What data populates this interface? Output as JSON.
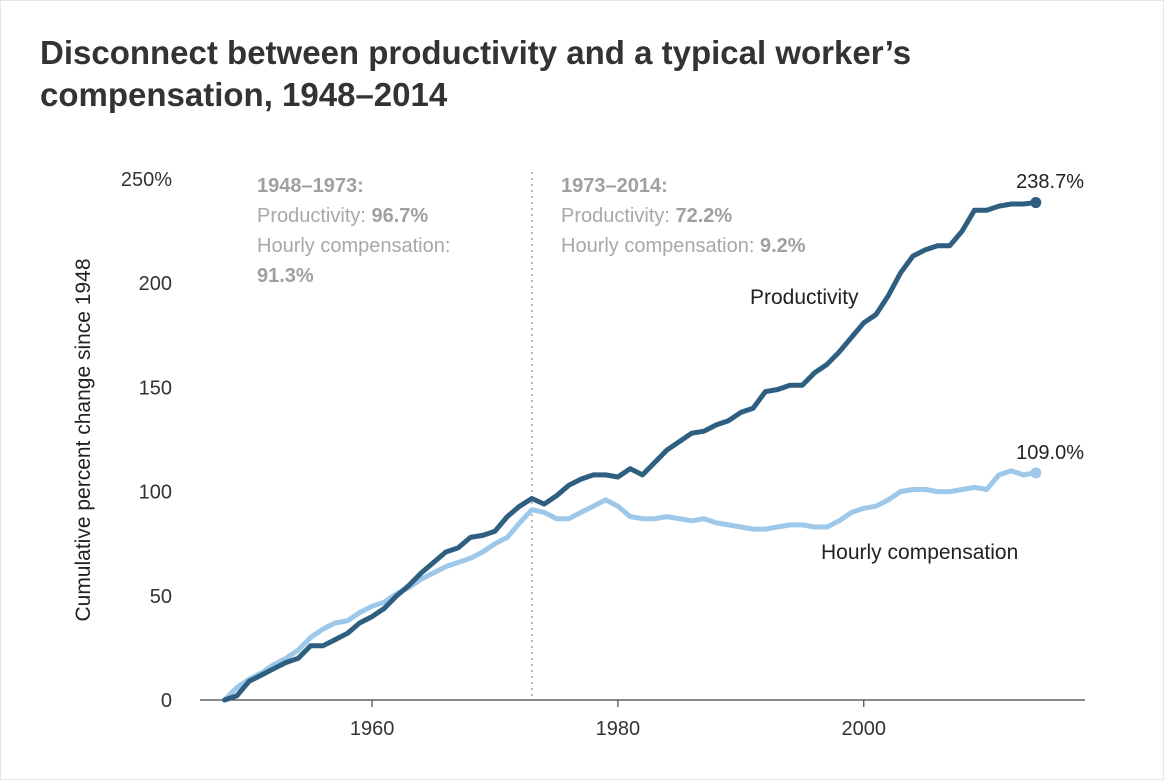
{
  "chart_data": {
    "type": "line",
    "title": "Disconnect between productivity and a typical worker’s compensation, 1948–2014",
    "ylabel": "Cumulative percent change since 1948",
    "xlabel": "",
    "xlim": [
      1946,
      2018
    ],
    "ylim": [
      0,
      250
    ],
    "x_ticks": [
      "1960",
      "1980",
      "2000"
    ],
    "y_ticks": [
      "0",
      "50",
      "100",
      "150",
      "200",
      "250%"
    ],
    "grid": false,
    "reference_line": {
      "x": 1973,
      "style": "dotted"
    },
    "annotations": {
      "period1": {
        "heading": "1948–1973:",
        "prod_label": "Productivity: ",
        "prod_value": "96.7%",
        "comp_label": "Hourly compensation:",
        "comp_value": "91.3%"
      },
      "period2": {
        "heading": "1973–2014:",
        "prod_label": "Productivity: ",
        "prod_value": "72.2%",
        "comp_label": "Hourly compensation: ",
        "comp_value": "9.2%"
      }
    },
    "series": [
      {
        "name": "Productivity",
        "color": "#2e5f80",
        "end_label": "238.7%",
        "x": [
          1948,
          1949,
          1950,
          1951,
          1952,
          1953,
          1954,
          1955,
          1956,
          1957,
          1958,
          1959,
          1960,
          1961,
          1962,
          1963,
          1964,
          1965,
          1966,
          1967,
          1968,
          1969,
          1970,
          1971,
          1972,
          1973,
          1974,
          1975,
          1976,
          1977,
          1978,
          1979,
          1980,
          1981,
          1982,
          1983,
          1984,
          1985,
          1986,
          1987,
          1988,
          1989,
          1990,
          1991,
          1992,
          1993,
          1994,
          1995,
          1996,
          1997,
          1998,
          1999,
          2000,
          2001,
          2002,
          2003,
          2004,
          2005,
          2006,
          2007,
          2008,
          2009,
          2010,
          2011,
          2012,
          2013,
          2014
        ],
        "values": [
          0,
          2,
          9,
          12,
          15,
          18,
          20,
          26,
          26,
          29,
          32,
          37,
          40,
          44,
          50,
          55,
          61,
          66,
          71,
          73,
          78,
          79,
          81,
          88,
          93,
          96.7,
          94,
          98,
          103,
          106,
          108,
          108,
          107,
          111,
          108,
          114,
          120,
          124,
          128,
          129,
          132,
          134,
          138,
          140,
          148,
          149,
          151,
          151,
          157,
          161,
          167,
          174,
          181,
          185,
          194,
          205,
          213,
          216,
          218,
          218,
          225,
          235,
          235,
          237,
          238,
          238,
          238.7
        ]
      },
      {
        "name": "Hourly compensation",
        "color": "#9dc8e9",
        "end_label": "109.0%",
        "x": [
          1948,
          1949,
          1950,
          1951,
          1952,
          1953,
          1954,
          1955,
          1956,
          1957,
          1958,
          1959,
          1960,
          1961,
          1962,
          1963,
          1964,
          1965,
          1966,
          1967,
          1968,
          1969,
          1970,
          1971,
          1972,
          1973,
          1974,
          1975,
          1976,
          1977,
          1978,
          1979,
          1980,
          1981,
          1982,
          1983,
          1984,
          1985,
          1986,
          1987,
          1988,
          1989,
          1990,
          1991,
          1992,
          1993,
          1994,
          1995,
          1996,
          1997,
          1998,
          1999,
          2000,
          2001,
          2002,
          2003,
          2004,
          2005,
          2006,
          2007,
          2008,
          2009,
          2010,
          2011,
          2012,
          2013,
          2014
        ],
        "values": [
          0,
          6,
          10,
          13,
          17,
          20,
          24,
          30,
          34,
          37,
          38,
          42,
          45,
          47,
          51,
          54,
          58,
          61,
          64,
          66,
          68,
          71,
          75,
          78,
          85,
          91.3,
          90,
          87,
          87,
          90,
          93,
          96,
          93,
          88,
          87,
          87,
          88,
          87,
          86,
          87,
          85,
          84,
          83,
          82,
          82,
          83,
          84,
          84,
          83,
          83,
          86,
          90,
          92,
          93,
          96,
          100,
          101,
          101,
          100,
          100,
          101,
          102,
          101,
          108,
          110,
          108,
          109
        ]
      }
    ]
  }
}
